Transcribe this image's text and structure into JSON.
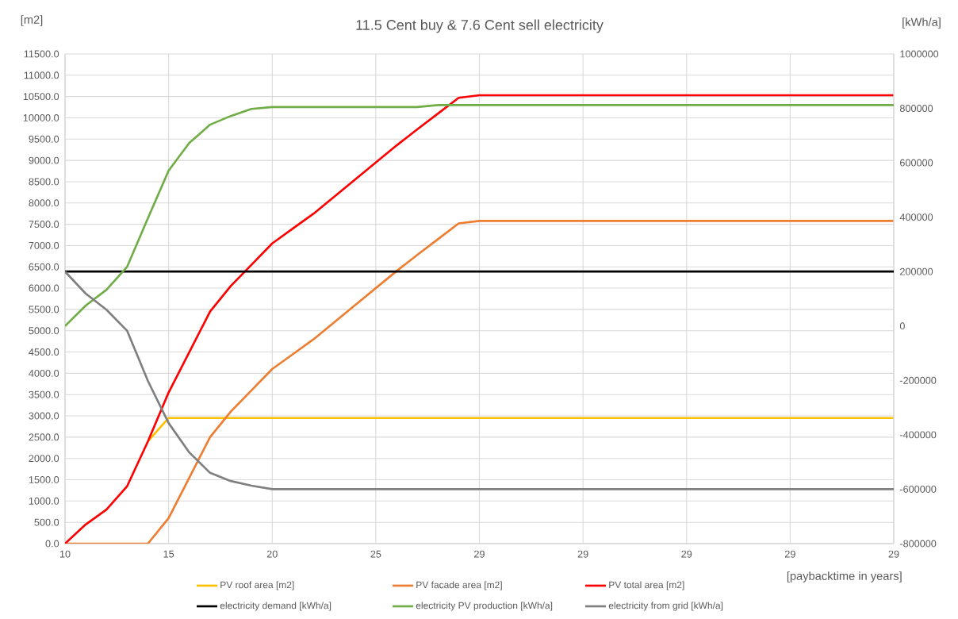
{
  "chart_data": {
    "type": "line",
    "title": "11.5 Cent buy & 7.6 Cent sell electricity",
    "xlabel": "[paybacktime in years]",
    "ylabel": "[m2]",
    "y2label": "[kWh/a]",
    "categories": [
      "10",
      null,
      null,
      null,
      null,
      "15",
      null,
      null,
      null,
      null,
      "20",
      null,
      null,
      null,
      null,
      "25",
      null,
      null,
      null,
      null,
      "29",
      null,
      null,
      null,
      null,
      "29",
      null,
      null,
      null,
      null,
      "29",
      null,
      null,
      null,
      null,
      "29",
      null,
      null,
      null,
      null,
      "29"
    ],
    "series": [
      {
        "name": "PV roof area [m2]",
        "color": "#ffc000",
        "values": [
          null,
          null,
          null,
          null,
          2400,
          2950,
          2950,
          2950,
          2950,
          2950,
          2950,
          2950,
          2950,
          2950,
          2950,
          2950,
          2950,
          2950,
          2950,
          2950,
          2950,
          2950,
          2950,
          2950,
          2950,
          2950,
          2950,
          2950,
          2950,
          2950,
          2950,
          2950,
          2950,
          2950,
          2950,
          2950,
          2950,
          2950,
          2950,
          2950,
          2950
        ]
      },
      {
        "name": "PV facade area [m2]",
        "color": "#ed7d31",
        "values": [
          0,
          0,
          0,
          0,
          0,
          600,
          1550,
          2500,
          3100,
          3600,
          4100,
          4450,
          4800,
          5200,
          5600,
          6000,
          6400,
          6780,
          7150,
          7520,
          7580,
          7580,
          7580,
          7580,
          7580,
          7580,
          7580,
          7580,
          7580,
          7580,
          7580,
          7580,
          7580,
          7580,
          7580,
          7580,
          7580,
          7580,
          7580,
          7580,
          7580
        ]
      },
      {
        "name": "PV total area [m2]",
        "color": "#ff0000",
        "values": [
          0,
          450,
          800,
          1350,
          2400,
          3550,
          4500,
          5450,
          6050,
          6550,
          7050,
          7400,
          7750,
          8150,
          8550,
          8950,
          9350,
          9730,
          10100,
          10470,
          10530,
          10530,
          10530,
          10530,
          10530,
          10530,
          10530,
          10530,
          10530,
          10530,
          10530,
          10530,
          10530,
          10530,
          10530,
          10530,
          10530,
          10530,
          10530,
          10530,
          10530
        ]
      },
      {
        "name": "electricity demand [kWh/a]",
        "color": "#000000",
        "axis": "y2",
        "values": [
          200000,
          200000,
          200000,
          200000,
          200000,
          200000,
          200000,
          200000,
          200000,
          200000,
          200000,
          200000,
          200000,
          200000,
          200000,
          200000,
          200000,
          200000,
          200000,
          200000,
          200000,
          200000,
          200000,
          200000,
          200000,
          200000,
          200000,
          200000,
          200000,
          200000,
          200000,
          200000,
          200000,
          200000,
          200000,
          200000,
          200000,
          200000,
          200000,
          200000,
          200000
        ]
      },
      {
        "name": "electricity PV production [kWh/a]",
        "color": "#70ad47",
        "axis": "y2",
        "values": [
          0,
          75000,
          133000,
          218000,
          396000,
          571000,
          673000,
          740000,
          772000,
          798000,
          805000,
          805000,
          805000,
          805000,
          805000,
          805000,
          805000,
          805000,
          812000,
          812000,
          812000,
          812000,
          812000,
          812000,
          812000,
          812000,
          812000,
          812000,
          812000,
          812000,
          812000,
          812000,
          812000,
          812000,
          812000,
          812000,
          812000,
          812000,
          812000,
          812000,
          812000
        ]
      },
      {
        "name": "electricity from grid [kWh/a]",
        "color": "#7f7f7f",
        "axis": "y2",
        "values": [
          200000,
          119000,
          60000,
          -18000,
          -202000,
          -357000,
          -465000,
          -540000,
          -570000,
          -587000,
          -600000,
          -600000,
          -600000,
          -600000,
          -600000,
          -600000,
          -600000,
          -600000,
          -600000,
          -600000,
          -600000,
          -600000,
          -600000,
          -600000,
          -600000,
          -600000,
          -600000,
          -600000,
          -600000,
          -600000,
          -600000,
          -600000,
          -600000,
          -600000,
          -600000,
          -600000,
          -600000,
          -600000,
          -600000,
          -600000,
          -600000
        ]
      }
    ],
    "ylim": [
      0,
      11500
    ],
    "yticks": [
      {
        "value": 0,
        "label": "0.0"
      },
      {
        "value": 500,
        "label": "500.0"
      },
      {
        "value": 1000,
        "label": "1000.0"
      },
      {
        "value": 1500,
        "label": "1500.0"
      },
      {
        "value": 2000,
        "label": "2000.0"
      },
      {
        "value": 2500,
        "label": "2500.0"
      },
      {
        "value": 3000,
        "label": "3000.0"
      },
      {
        "value": 3500,
        "label": "3500.0"
      },
      {
        "value": 4000,
        "label": "4000.0"
      },
      {
        "value": 4500,
        "label": "4500.0"
      },
      {
        "value": 5000,
        "label": "5000.0"
      },
      {
        "value": 5500,
        "label": "5500.0"
      },
      {
        "value": 6000,
        "label": "6000.0"
      },
      {
        "value": 6500,
        "label": "6500.0"
      },
      {
        "value": 7000,
        "label": "7000.0"
      },
      {
        "value": 7500,
        "label": "7500.0"
      },
      {
        "value": 8000,
        "label": "8000.0"
      },
      {
        "value": 8500,
        "label": "8500.0"
      },
      {
        "value": 9000,
        "label": "9000.0"
      },
      {
        "value": 9500,
        "label": "9500.0"
      },
      {
        "value": 10000,
        "label": "10000.0"
      },
      {
        "value": 10500,
        "label": "10500.0"
      },
      {
        "value": 11000,
        "label": "11000.0"
      },
      {
        "value": 11500,
        "label": "11500.0"
      }
    ],
    "y2lim": [
      -800000,
      1000000
    ],
    "y2ticks": [
      -800000,
      -600000,
      -400000,
      -200000,
      0,
      200000,
      400000,
      600000,
      800000,
      1000000
    ],
    "grid": true,
    "legend": "bottom",
    "marker": "none",
    "line_style": "solid"
  }
}
